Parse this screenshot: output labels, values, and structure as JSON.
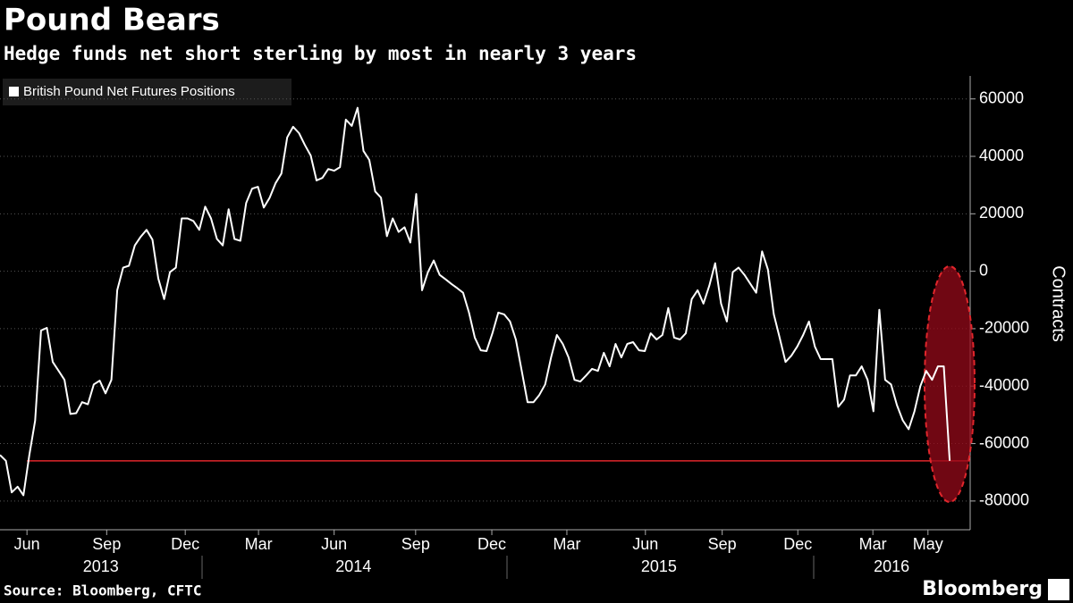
{
  "chart_data": {
    "type": "line",
    "title": "Pound Bears",
    "subtitle": "Hedge funds net short sterling by most in nearly 3 years",
    "source": "Source: Bloomberg, CFTC",
    "brand": "Bloomberg",
    "y_label": "Contracts",
    "series": [
      {
        "name": "British Pound Net Futures Positions",
        "color": "#ffffff",
        "values": [
          -64000,
          -66000,
          -77000,
          -75000,
          -78000,
          -64000,
          -52000,
          -20600,
          -19700,
          -31600,
          -34700,
          -37800,
          -49700,
          -49400,
          -45600,
          -46300,
          -39400,
          -38100,
          -42500,
          -37800,
          -6600,
          1250,
          1900,
          9000,
          12000,
          14400,
          11000,
          -2500,
          -9700,
          -300,
          1250,
          18400,
          18400,
          17500,
          14400,
          22500,
          18400,
          11250,
          9000,
          21600,
          11250,
          10600,
          23750,
          28750,
          29400,
          22200,
          25600,
          30600,
          34000,
          46600,
          50300,
          48100,
          44000,
          40300,
          31600,
          32500,
          35600,
          35000,
          36250,
          52800,
          50600,
          56900,
          41900,
          38750,
          27800,
          25600,
          12200,
          18400,
          13700,
          15300,
          10000,
          26900,
          -6600,
          -300,
          3750,
          -1250,
          -2800,
          -4400,
          -5900,
          -7500,
          -14400,
          -23100,
          -27500,
          -27800,
          -21600,
          -14400,
          -15000,
          -17500,
          -23750,
          -34700,
          -45600,
          -45600,
          -43100,
          -39400,
          -30000,
          -22200,
          -25300,
          -30000,
          -37800,
          -38400,
          -36250,
          -34000,
          -34700,
          -28400,
          -33100,
          -25300,
          -30000,
          -25300,
          -24700,
          -27500,
          -27800,
          -21600,
          -23750,
          -22200,
          -12800,
          -23100,
          -23750,
          -21600,
          -9700,
          -6600,
          -11250,
          -5000,
          2800,
          -11250,
          -17500,
          -300,
          1250,
          -1250,
          -4400,
          -7500,
          6900,
          600,
          -15000,
          -23100,
          -31600,
          -29400,
          -26200,
          -22200,
          -17500,
          -26200,
          -30600,
          -30600,
          -30600,
          -47200,
          -44700,
          -36250,
          -36250,
          -33100,
          -37800,
          -48750,
          -13400,
          -37800,
          -39400,
          -46600,
          -51900,
          -55000,
          -48750,
          -40000,
          -34700,
          -37800,
          -33100,
          -33100,
          -66000
        ]
      }
    ],
    "reference_line": {
      "value": -66000,
      "color": "#e0262b"
    },
    "xlim": [
      0,
      165.5
    ],
    "xticks": [
      {
        "value": 4.6,
        "label": "Jun"
      },
      {
        "value": 18.2,
        "label": "Sep"
      },
      {
        "value": 31.6,
        "label": "Dec"
      },
      {
        "value": 44.1,
        "label": "Mar"
      },
      {
        "value": 57.0,
        "label": "Jun"
      },
      {
        "value": 70.9,
        "label": "Sep"
      },
      {
        "value": 83.9,
        "label": "Dec"
      },
      {
        "value": 96.7,
        "label": "Mar"
      },
      {
        "value": 110.1,
        "label": "Jun"
      },
      {
        "value": 123.2,
        "label": "Sep"
      },
      {
        "value": 136.1,
        "label": "Dec"
      },
      {
        "value": 148.9,
        "label": "Mar"
      },
      {
        "value": 158.3,
        "label": "May"
      }
    ],
    "year_labels": [
      {
        "value": 17.2,
        "label": "2013"
      },
      {
        "value": 60.3,
        "label": "2014"
      },
      {
        "value": 112.4,
        "label": "2015"
      },
      {
        "value": 152.1,
        "label": "2016"
      }
    ],
    "ylim": [
      -90000,
      68000
    ],
    "yticks": [
      60000,
      40000,
      20000,
      0,
      -20000,
      -40000,
      -60000,
      -80000
    ],
    "grid": true
  }
}
